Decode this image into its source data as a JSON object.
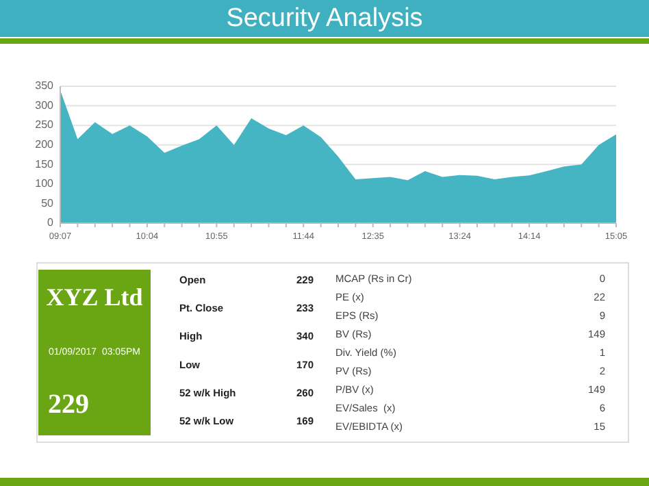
{
  "chart_data": [
    {
      "type": "area",
      "title": "Security Analysis",
      "categories": [
        "09:07",
        null,
        null,
        null,
        null,
        "10:04",
        null,
        null,
        null,
        "10:55",
        null,
        null,
        null,
        null,
        "11:44",
        null,
        null,
        null,
        "12:35",
        null,
        null,
        null,
        null,
        "13:24",
        null,
        null,
        null,
        "14:14",
        null,
        null,
        null,
        null,
        "15:05"
      ],
      "values": [
        340,
        215,
        258,
        228,
        250,
        222,
        180,
        198,
        215,
        250,
        200,
        268,
        242,
        225,
        250,
        220,
        170,
        112,
        115,
        118,
        110,
        133,
        118,
        123,
        121,
        112,
        118,
        122,
        133,
        145,
        150,
        200,
        227
      ],
      "color": "#46b5c3",
      "ylim": [
        0,
        350
      ],
      "yticks": [
        0,
        50,
        100,
        150,
        200,
        250,
        300,
        350
      ],
      "grid": "y"
    },
    {
      "type": "other",
      "title": "XYZ Ltd",
      "subtitle": "01/09/2017  03:05PM",
      "annotations": [
        "229"
      ],
      "categories": [
        "Open",
        "Pt. Close",
        "High",
        "Low",
        "52 w/k High",
        "52 w/k Low"
      ],
      "values": [
        229,
        233,
        340,
        170,
        260,
        169
      ],
      "data_labels": true
    },
    {
      "type": "other",
      "categories": [
        "MCAP (Rs in Cr)",
        "PE (x)",
        "EPS (Rs)",
        "BV (Rs)",
        "Div. Yield (%)",
        "PV (Rs)",
        "P/BV (x)",
        "EV/Sales  (x)",
        "EV/EBIDTA (x)"
      ],
      "values": [
        0,
        22,
        9,
        149,
        1,
        2,
        149,
        6,
        15
      ],
      "data_labels": true
    }
  ]
}
